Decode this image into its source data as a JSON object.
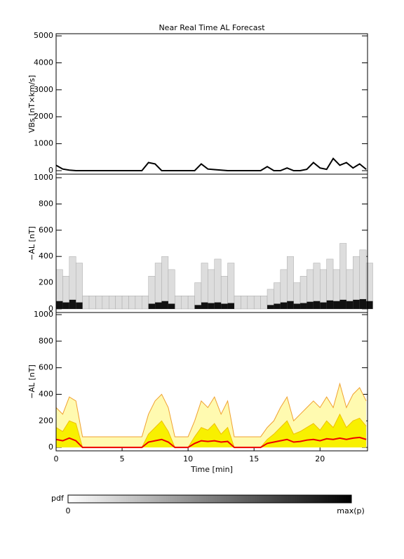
{
  "chart_data": [
    {
      "type": "line",
      "title": "Near Real Time AL Forecast",
      "ylabel": "VBs [nT×km/s]",
      "x": [
        0,
        0.5,
        1,
        1.5,
        2,
        2.5,
        3,
        3.5,
        4,
        4.5,
        5,
        5.5,
        6,
        6.5,
        7,
        7.5,
        8,
        8.5,
        9,
        9.5,
        10,
        10.5,
        11,
        11.5,
        12,
        12.5,
        13,
        13.5,
        14,
        14.5,
        15,
        15.5,
        16,
        16.5,
        17,
        17.5,
        18,
        18.5,
        19,
        19.5,
        20,
        20.5,
        21,
        21.5,
        22,
        22.5,
        23,
        23.5
      ],
      "series": [
        {
          "color": "#000000",
          "values": [
            200,
            60,
            20,
            0,
            0,
            0,
            0,
            0,
            0,
            0,
            0,
            0,
            0,
            0,
            300,
            250,
            0,
            0,
            0,
            0,
            0,
            0,
            250,
            60,
            40,
            20,
            0,
            0,
            0,
            0,
            0,
            0,
            150,
            0,
            0,
            100,
            0,
            0,
            50,
            300,
            100,
            50,
            450,
            200,
            300,
            100,
            250,
            50
          ]
        }
      ],
      "xlim": [
        0,
        23.6
      ],
      "ylim": [
        -130,
        5080
      ],
      "yticks": [
        0,
        1000,
        2000,
        3000,
        4000,
        5000
      ]
    },
    {
      "type": "heatmap",
      "ylabel": "−AL [nT]",
      "x": [
        0,
        0.5,
        1,
        1.5,
        2,
        2.5,
        3,
        3.5,
        4,
        4.5,
        5,
        5.5,
        6,
        6.5,
        7,
        7.5,
        8,
        8.5,
        9,
        9.5,
        10,
        10.5,
        11,
        11.5,
        12,
        12.5,
        13,
        13.5,
        14,
        14.5,
        15,
        15.5,
        16,
        16.5,
        17,
        17.5,
        18,
        18.5,
        19,
        19.5,
        20,
        20.5,
        21,
        21.5,
        22,
        22.5,
        23,
        23.5
      ],
      "series": [
        {
          "color": "#dddddd",
          "values": [
            300,
            250,
            400,
            350,
            100,
            100,
            100,
            100,
            100,
            100,
            100,
            100,
            100,
            100,
            250,
            350,
            400,
            300,
            100,
            100,
            100,
            200,
            350,
            300,
            380,
            250,
            350,
            100,
            100,
            100,
            100,
            100,
            150,
            200,
            300,
            400,
            200,
            250,
            300,
            350,
            300,
            380,
            300,
            500,
            300,
            400,
            450,
            350
          ]
        },
        {
          "color": "#111111",
          "values": [
            60,
            50,
            70,
            50,
            0,
            0,
            0,
            0,
            0,
            0,
            0,
            0,
            0,
            0,
            40,
            50,
            60,
            40,
            0,
            0,
            0,
            30,
            50,
            45,
            50,
            40,
            45,
            0,
            0,
            0,
            0,
            0,
            30,
            40,
            50,
            60,
            40,
            45,
            55,
            60,
            50,
            65,
            60,
            70,
            60,
            70,
            75,
            60
          ]
        }
      ],
      "xlim": [
        0,
        23.6
      ],
      "ylim": [
        -27,
        1027
      ],
      "yticks": [
        0,
        200,
        400,
        600,
        800,
        1000
      ]
    },
    {
      "type": "area",
      "ylabel": "−AL [nT]",
      "xlabel": "Time [min]",
      "x": [
        0,
        0.5,
        1,
        1.5,
        2,
        2.5,
        3,
        3.5,
        4,
        4.5,
        5,
        5.5,
        6,
        6.5,
        7,
        7.5,
        8,
        8.5,
        9,
        9.5,
        10,
        10.5,
        11,
        11.5,
        12,
        12.5,
        13,
        13.5,
        14,
        14.5,
        15,
        15.5,
        16,
        16.5,
        17,
        17.5,
        18,
        18.5,
        19,
        19.5,
        20,
        20.5,
        21,
        21.5,
        22,
        22.5,
        23,
        23.5
      ],
      "series": [
        {
          "color": "#f0a030",
          "fill": "#fffab0",
          "values": [
            300,
            250,
            380,
            350,
            80,
            80,
            80,
            80,
            80,
            80,
            80,
            80,
            80,
            80,
            250,
            350,
            400,
            300,
            80,
            80,
            80,
            200,
            350,
            300,
            380,
            250,
            350,
            80,
            80,
            80,
            80,
            80,
            150,
            200,
            300,
            380,
            200,
            250,
            300,
            350,
            300,
            380,
            300,
            480,
            300,
            400,
            450,
            350
          ]
        },
        {
          "color": "#f0c000",
          "fill": "#f8f000",
          "values": [
            150,
            120,
            200,
            180,
            0,
            0,
            0,
            0,
            0,
            0,
            0,
            0,
            0,
            0,
            100,
            150,
            200,
            120,
            0,
            0,
            0,
            80,
            150,
            130,
            180,
            100,
            150,
            0,
            0,
            0,
            0,
            0,
            60,
            100,
            150,
            200,
            100,
            120,
            150,
            180,
            130,
            200,
            150,
            250,
            150,
            200,
            220,
            160
          ]
        },
        {
          "color": "#ee0000",
          "values": [
            60,
            50,
            70,
            50,
            0,
            0,
            0,
            0,
            0,
            0,
            0,
            0,
            0,
            0,
            40,
            50,
            60,
            40,
            0,
            0,
            0,
            30,
            50,
            45,
            50,
            40,
            45,
            0,
            0,
            0,
            0,
            0,
            30,
            40,
            50,
            60,
            40,
            45,
            55,
            60,
            50,
            65,
            60,
            70,
            60,
            70,
            75,
            60
          ]
        }
      ],
      "xlim": [
        0,
        23.6
      ],
      "ylim": [
        -26,
        1016
      ],
      "yticks": [
        0,
        200,
        400,
        600,
        800,
        1000
      ],
      "xticks": [
        0,
        5,
        10,
        15,
        20
      ]
    }
  ],
  "colorbar": {
    "label": "pdf",
    "min_label": "0",
    "max_label": "max(p)"
  }
}
